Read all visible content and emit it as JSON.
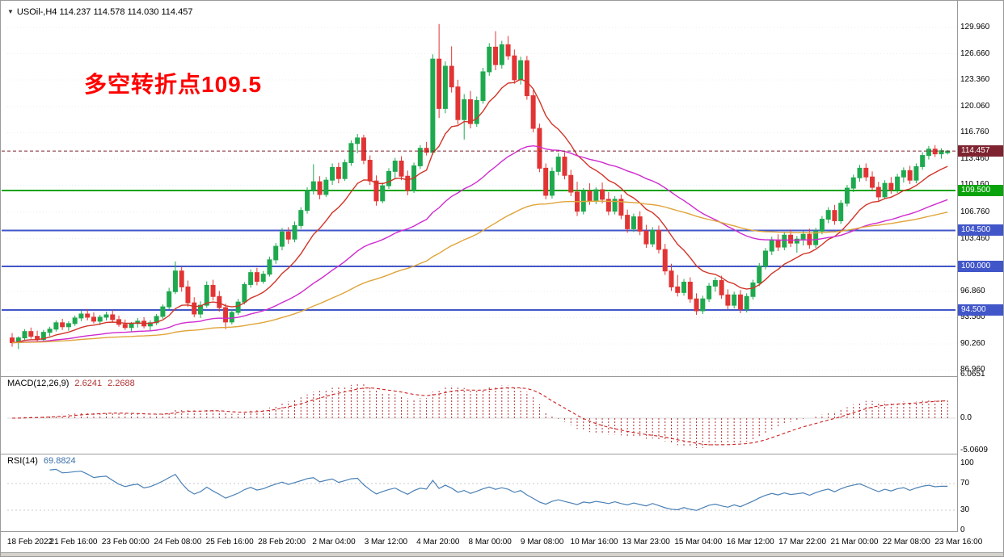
{
  "window": {
    "symbol_line": "USOil-,H4  114.237 114.578 114.030 114.457",
    "annotation": "多空转折点109.5",
    "annotation_color": "#ff0000"
  },
  "icons": {
    "chart_marker": "▼"
  },
  "price_axis": {
    "ticks": [
      "129.960",
      "126.660",
      "123.360",
      "120.060",
      "116.760",
      "113.460",
      "110.160",
      "106.760",
      "103.460",
      "100.160",
      "96.860",
      "93.560",
      "90.260",
      "86.960"
    ],
    "current_price": 114.457,
    "current_label": "114.457",
    "current_badge_color": "#7e2430"
  },
  "indicators": {
    "macd": {
      "label": "MACD(12,26,9)",
      "value_main": "2.6241",
      "value_signal": "2.2688",
      "color": "#b13333",
      "signal_color": "#cc2222",
      "axis": [
        {
          "v": 6.0651,
          "label": "6.0651"
        },
        {
          "v": 0,
          "label": "0.0"
        },
        {
          "v": -5.0609,
          "label": "-5.0609"
        }
      ]
    },
    "rsi": {
      "label": "RSI(14)",
      "value": "69.8824",
      "color": "#4a80b5",
      "levels": [
        70,
        30
      ],
      "axis": [
        {
          "v": 100,
          "label": "100"
        },
        {
          "v": 70,
          "label": "70"
        },
        {
          "v": 30,
          "label": "30"
        },
        {
          "v": 0,
          "label": "0"
        }
      ]
    }
  },
  "chart_data": {
    "type": "candlestick",
    "title": "USOil-,H4",
    "symbol": "USOil",
    "timeframe": "H4",
    "ylim": [
      86.5,
      132.3
    ],
    "up_color": "#1fa94f",
    "down_color": "#e23434",
    "hlines": [
      {
        "price": 109.5,
        "label": "109.500",
        "color": "#09a30b",
        "width": 2
      },
      {
        "price": 104.5,
        "label": "104.500",
        "color": "#4156c9",
        "width": 2
      },
      {
        "price": 100.0,
        "label": "100.000",
        "color": "#4156c9",
        "width": 2
      },
      {
        "price": 94.5,
        "label": "94.500",
        "color": "#4156c9",
        "width": 2
      }
    ],
    "moving_averages": [
      {
        "name": "ma-fast",
        "period": 12,
        "color": "#d23427"
      },
      {
        "name": "ma-mid",
        "period": 44,
        "color": "#cf2bcf"
      },
      {
        "name": "ma-slow",
        "period": 90,
        "color": "#dfa43a"
      }
    ],
    "x_labels": [
      "18 Feb 2022",
      "21 Feb 16:00",
      "23 Feb 00:00",
      "24 Feb 08:00",
      "25 Feb 16:00",
      "28 Feb 20:00",
      "2 Mar 04:00",
      "3 Mar 12:00",
      "4 Mar 20:00",
      "8 Mar 00:00",
      "9 Mar 08:00",
      "10 Mar 16:00",
      "13 Mar 23:00",
      "15 Mar 04:00",
      "16 Mar 12:00",
      "17 Mar 22:00",
      "21 Mar 00:00",
      "22 Mar 08:00",
      "23 Mar 16:00"
    ],
    "ohlc": [
      [
        91.0,
        91.6,
        89.9,
        90.4
      ],
      [
        90.4,
        91.2,
        89.6,
        91.0
      ],
      [
        91.0,
        92.1,
        90.7,
        91.8
      ],
      [
        91.8,
        92.3,
        90.9,
        91.2
      ],
      [
        91.2,
        91.9,
        90.4,
        90.8
      ],
      [
        90.8,
        92.0,
        90.5,
        91.7
      ],
      [
        91.7,
        92.4,
        91.2,
        92.1
      ],
      [
        92.1,
        93.2,
        91.8,
        92.9
      ],
      [
        92.9,
        93.4,
        92.0,
        92.4
      ],
      [
        92.4,
        93.1,
        91.9,
        92.8
      ],
      [
        92.8,
        93.8,
        92.5,
        93.5
      ],
      [
        93.5,
        94.4,
        93.1,
        94.0
      ],
      [
        94.0,
        94.6,
        93.2,
        93.6
      ],
      [
        93.6,
        94.2,
        92.8,
        93.1
      ],
      [
        93.1,
        93.9,
        92.6,
        93.6
      ],
      [
        93.6,
        94.3,
        93.2,
        93.9
      ],
      [
        93.9,
        94.5,
        92.9,
        93.3
      ],
      [
        93.3,
        93.8,
        92.4,
        92.7
      ],
      [
        92.7,
        93.3,
        92.0,
        92.3
      ],
      [
        92.3,
        93.0,
        91.8,
        92.8
      ],
      [
        92.8,
        93.5,
        92.3,
        93.1
      ],
      [
        93.1,
        93.6,
        92.2,
        92.5
      ],
      [
        92.5,
        93.2,
        91.9,
        92.9
      ],
      [
        92.9,
        94.0,
        92.6,
        93.7
      ],
      [
        93.7,
        95.2,
        93.4,
        94.9
      ],
      [
        94.9,
        97.3,
        94.6,
        96.8
      ],
      [
        96.8,
        100.6,
        96.5,
        99.4
      ],
      [
        99.4,
        99.9,
        96.8,
        97.4
      ],
      [
        97.4,
        98.2,
        94.9,
        95.4
      ],
      [
        95.4,
        96.1,
        93.6,
        94.0
      ],
      [
        94.0,
        95.6,
        93.5,
        95.1
      ],
      [
        95.1,
        98.1,
        94.8,
        97.6
      ],
      [
        97.6,
        98.3,
        95.7,
        96.2
      ],
      [
        96.2,
        96.9,
        94.3,
        94.8
      ],
      [
        94.8,
        95.3,
        92.1,
        93.0
      ],
      [
        93.0,
        94.6,
        92.7,
        94.2
      ],
      [
        94.2,
        95.9,
        93.9,
        95.5
      ],
      [
        95.5,
        98.0,
        95.2,
        97.7
      ],
      [
        97.7,
        99.6,
        97.3,
        99.2
      ],
      [
        99.2,
        99.8,
        97.6,
        98.1
      ],
      [
        98.1,
        99.4,
        97.8,
        99.0
      ],
      [
        99.0,
        101.2,
        98.7,
        100.8
      ],
      [
        100.8,
        102.9,
        100.3,
        102.5
      ],
      [
        102.5,
        104.8,
        102.0,
        104.3
      ],
      [
        104.3,
        104.9,
        102.8,
        103.4
      ],
      [
        103.4,
        105.6,
        103.0,
        105.1
      ],
      [
        105.1,
        107.4,
        104.7,
        107.0
      ],
      [
        107.0,
        109.9,
        106.6,
        109.5
      ],
      [
        109.5,
        112.8,
        109.0,
        110.6
      ],
      [
        110.6,
        111.3,
        108.4,
        109.0
      ],
      [
        109.0,
        111.2,
        108.7,
        110.8
      ],
      [
        110.8,
        112.9,
        110.2,
        112.4
      ],
      [
        112.4,
        113.0,
        110.4,
        111.0
      ],
      [
        111.0,
        113.4,
        110.7,
        113.0
      ],
      [
        113.0,
        115.8,
        112.6,
        115.4
      ],
      [
        115.4,
        116.6,
        114.2,
        116.1
      ],
      [
        116.1,
        116.5,
        112.8,
        113.3
      ],
      [
        113.3,
        113.9,
        110.2,
        110.7
      ],
      [
        110.7,
        111.4,
        107.6,
        108.2
      ],
      [
        108.2,
        110.5,
        107.9,
        110.1
      ],
      [
        110.1,
        112.3,
        109.7,
        111.9
      ],
      [
        111.9,
        113.6,
        110.9,
        113.2
      ],
      [
        113.2,
        113.8,
        110.8,
        111.3
      ],
      [
        111.3,
        112.0,
        108.9,
        109.5
      ],
      [
        109.5,
        113.0,
        109.2,
        112.6
      ],
      [
        112.6,
        115.2,
        112.2,
        114.8
      ],
      [
        114.8,
        115.6,
        113.9,
        114.3
      ],
      [
        114.3,
        126.6,
        114.0,
        126.0
      ],
      [
        126.0,
        130.4,
        118.6,
        119.8
      ],
      [
        119.8,
        125.7,
        119.2,
        125.1
      ],
      [
        125.1,
        127.6,
        121.8,
        122.5
      ],
      [
        122.5,
        123.4,
        117.8,
        118.4
      ],
      [
        118.4,
        121.6,
        115.9,
        120.9
      ],
      [
        120.9,
        122.0,
        117.3,
        117.9
      ],
      [
        117.9,
        121.3,
        117.5,
        120.8
      ],
      [
        120.8,
        124.9,
        120.4,
        124.4
      ],
      [
        124.4,
        128.0,
        123.9,
        127.5
      ],
      [
        127.5,
        129.5,
        124.6,
        125.3
      ],
      [
        125.3,
        128.3,
        124.8,
        127.8
      ],
      [
        127.8,
        128.9,
        125.9,
        126.4
      ],
      [
        126.4,
        127.2,
        122.9,
        123.4
      ],
      [
        123.4,
        126.3,
        122.8,
        125.8
      ],
      [
        125.8,
        126.4,
        120.9,
        121.4
      ],
      [
        121.4,
        122.2,
        116.8,
        117.3
      ],
      [
        117.3,
        117.9,
        111.8,
        112.3
      ],
      [
        112.3,
        112.9,
        108.4,
        108.9
      ],
      [
        108.9,
        112.4,
        108.5,
        111.9
      ],
      [
        111.9,
        114.2,
        111.4,
        113.7
      ],
      [
        113.7,
        114.3,
        110.9,
        111.4
      ],
      [
        111.4,
        112.1,
        108.8,
        109.3
      ],
      [
        109.3,
        110.6,
        106.3,
        106.9
      ],
      [
        106.9,
        109.8,
        106.5,
        109.4
      ],
      [
        109.4,
        110.4,
        107.7,
        108.2
      ],
      [
        108.2,
        109.9,
        107.8,
        109.6
      ],
      [
        109.6,
        110.5,
        107.9,
        108.4
      ],
      [
        108.4,
        109.3,
        106.4,
        106.9
      ],
      [
        106.9,
        108.8,
        106.5,
        108.4
      ],
      [
        108.4,
        109.0,
        105.9,
        106.4
      ],
      [
        106.4,
        107.1,
        104.2,
        104.7
      ],
      [
        104.7,
        106.6,
        104.3,
        106.2
      ],
      [
        106.2,
        106.9,
        103.9,
        104.4
      ],
      [
        104.4,
        105.2,
        102.3,
        102.8
      ],
      [
        102.8,
        104.9,
        102.4,
        104.5
      ],
      [
        104.5,
        105.1,
        101.6,
        102.1
      ],
      [
        102.1,
        102.8,
        98.9,
        99.4
      ],
      [
        99.4,
        100.3,
        96.9,
        97.4
      ],
      [
        97.4,
        98.9,
        96.2,
        96.7
      ],
      [
        96.7,
        98.4,
        96.3,
        98.0
      ],
      [
        98.0,
        98.6,
        95.4,
        95.9
      ],
      [
        95.9,
        96.6,
        93.9,
        94.4
      ],
      [
        94.4,
        96.3,
        94.0,
        95.9
      ],
      [
        95.9,
        97.9,
        95.5,
        97.5
      ],
      [
        97.5,
        98.6,
        96.8,
        98.2
      ],
      [
        98.2,
        98.8,
        95.9,
        96.4
      ],
      [
        96.4,
        97.1,
        94.6,
        95.1
      ],
      [
        95.1,
        96.8,
        94.7,
        96.4
      ],
      [
        96.4,
        97.0,
        94.1,
        94.6
      ],
      [
        94.6,
        96.6,
        94.2,
        96.2
      ],
      [
        96.2,
        98.3,
        95.8,
        97.9
      ],
      [
        97.9,
        100.4,
        97.5,
        100.0
      ],
      [
        100.0,
        102.3,
        99.6,
        101.9
      ],
      [
        101.9,
        103.7,
        101.4,
        103.3
      ],
      [
        103.3,
        104.0,
        101.9,
        102.4
      ],
      [
        102.4,
        104.3,
        102.0,
        103.9
      ],
      [
        103.9,
        104.6,
        102.4,
        102.9
      ],
      [
        102.9,
        103.8,
        101.7,
        103.4
      ],
      [
        103.4,
        104.4,
        102.6,
        104.0
      ],
      [
        104.0,
        104.7,
        102.2,
        102.7
      ],
      [
        102.7,
        104.8,
        102.3,
        104.4
      ],
      [
        104.4,
        106.3,
        104.0,
        105.9
      ],
      [
        105.9,
        107.4,
        105.4,
        107.0
      ],
      [
        107.0,
        107.7,
        105.2,
        105.7
      ],
      [
        105.7,
        108.3,
        105.3,
        107.9
      ],
      [
        107.9,
        110.2,
        107.5,
        109.8
      ],
      [
        109.8,
        111.5,
        109.3,
        111.1
      ],
      [
        111.1,
        112.7,
        110.6,
        112.3
      ],
      [
        112.3,
        112.9,
        110.7,
        111.2
      ],
      [
        111.2,
        111.9,
        109.4,
        109.9
      ],
      [
        109.9,
        110.6,
        108.2,
        108.7
      ],
      [
        108.7,
        110.8,
        108.4,
        110.4
      ],
      [
        110.4,
        111.2,
        109.1,
        109.6
      ],
      [
        109.6,
        111.6,
        109.2,
        111.2
      ],
      [
        111.2,
        112.4,
        110.5,
        112.0
      ],
      [
        112.0,
        112.6,
        110.3,
        110.8
      ],
      [
        110.8,
        112.9,
        110.4,
        112.5
      ],
      [
        112.5,
        114.3,
        112.1,
        113.9
      ],
      [
        113.9,
        115.1,
        113.4,
        114.7
      ],
      [
        114.7,
        115.2,
        113.7,
        114.1
      ],
      [
        114.1,
        114.8,
        113.5,
        114.5
      ],
      [
        114.237,
        114.578,
        114.03,
        114.457
      ]
    ]
  }
}
